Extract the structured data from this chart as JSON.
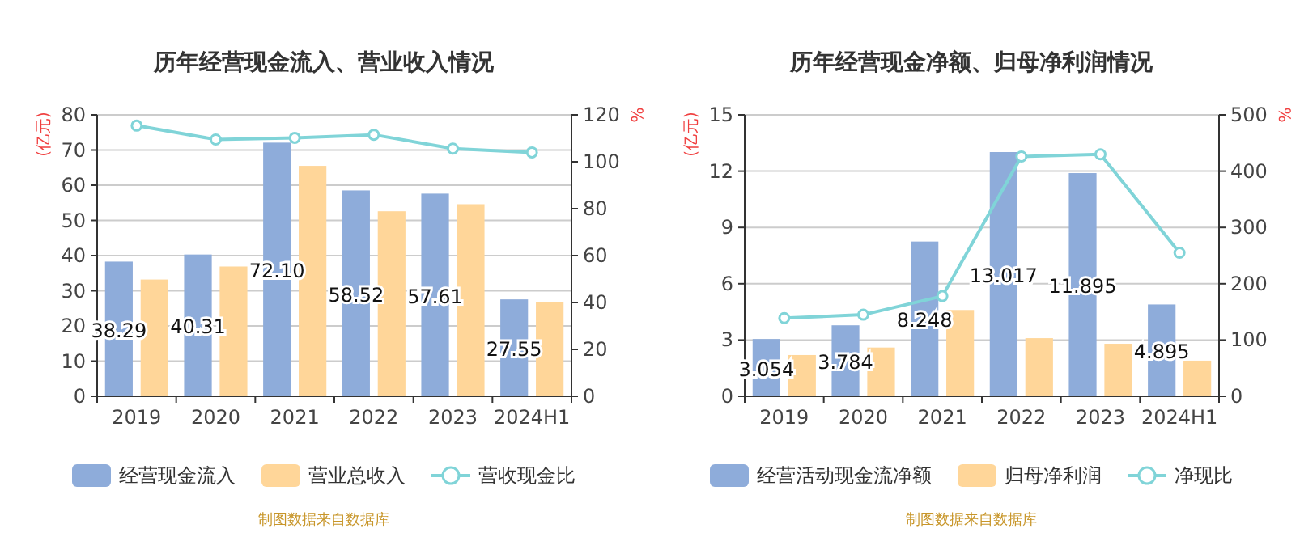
{
  "chart_data": [
    {
      "type": "bar",
      "title": "历年经营现金流入、营业收入情况",
      "ylabel": "(亿元)",
      "y2label": "%",
      "categories": [
        "2019",
        "2020",
        "2021",
        "2022",
        "2023",
        "2024H1"
      ],
      "ylim": [
        0,
        80
      ],
      "yticks": [
        0,
        10,
        20,
        30,
        40,
        50,
        60,
        70,
        80
      ],
      "y2lim": [
        0,
        120
      ],
      "y2ticks": [
        0,
        20,
        40,
        60,
        80,
        100,
        120
      ],
      "grid": "y",
      "legend": "bottom",
      "marker": "circle",
      "annotations": [
        "制图数据来自数据库"
      ],
      "series": [
        {
          "name": "经营现金流入",
          "color": "#8eacda",
          "values": [
            38.29,
            40.31,
            72.1,
            58.52,
            57.61,
            27.55
          ],
          "value_labels": [
            "38.29",
            "40.31",
            "72.10",
            "58.52",
            "57.61",
            "27.55"
          ]
        },
        {
          "name": "营业总收入",
          "color": "#ffd699",
          "values": [
            33.2,
            36.9,
            65.5,
            52.6,
            54.6,
            26.7
          ]
        },
        {
          "name": "营收现金比",
          "type": "line",
          "axis": "y2",
          "color": "#80d4d8",
          "values": [
            115.4,
            109.5,
            110.2,
            111.5,
            105.6,
            104
          ]
        }
      ]
    },
    {
      "type": "bar",
      "title": "历年经营现金净额、归母净利润情况",
      "ylabel": "(亿元)",
      "y2label": "%",
      "categories": [
        "2019",
        "2020",
        "2021",
        "2022",
        "2023",
        "2024H1"
      ],
      "ylim": [
        0,
        15
      ],
      "yticks": [
        0,
        3,
        6,
        9,
        12,
        15
      ],
      "y2lim": [
        0,
        500
      ],
      "y2ticks": [
        0,
        100,
        200,
        300,
        400,
        500
      ],
      "grid": "y",
      "legend": "bottom",
      "marker": "circle",
      "annotations": [
        "制图数据来自数据库"
      ],
      "series": [
        {
          "name": "经营活动现金流净额",
          "color": "#8eacda",
          "values": [
            3.054,
            3.784,
            8.248,
            13.017,
            11.895,
            4.895
          ],
          "data_labels": true
        },
        {
          "name": "归母净利润",
          "color": "#ffd699",
          "values": [
            2.2,
            2.6,
            4.6,
            3.1,
            2.8,
            1.9
          ]
        },
        {
          "name": "净现比",
          "type": "line",
          "axis": "y2",
          "color": "#80d4d8",
          "values": [
            139,
            145,
            178,
            426,
            430,
            255
          ]
        }
      ]
    }
  ]
}
